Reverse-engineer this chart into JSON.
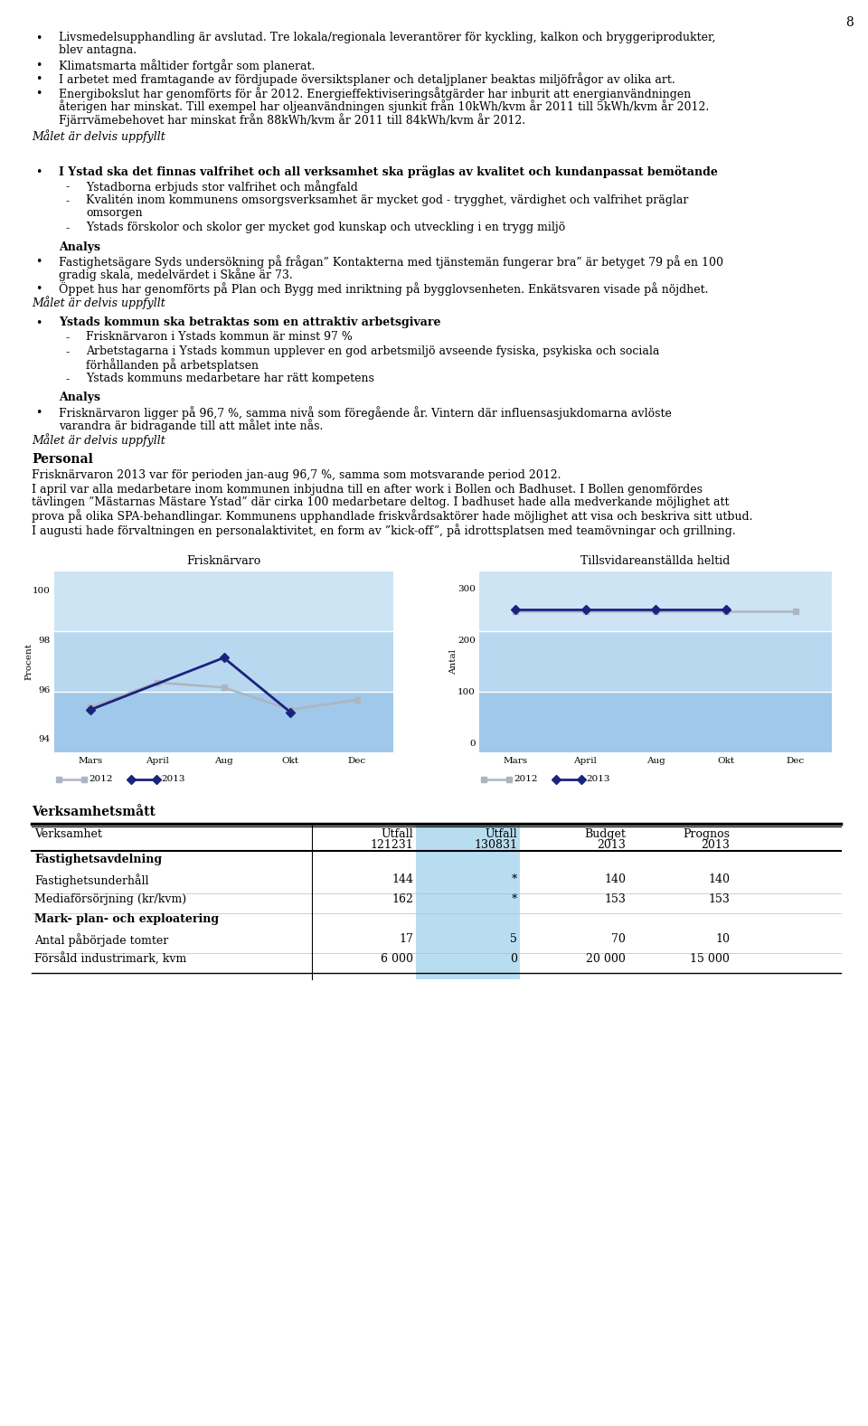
{
  "page_number": "8",
  "background_color": "#ffffff",
  "bullet_points_1": [
    [
      "Livsmedelsupphandling är avslutad. Tre lokala/regionala leverantörer för kyckling, kalkon och bryggeriprodukter,",
      "blev antagna."
    ],
    [
      "Klimatsmarta måltider fortgår som planerat."
    ],
    [
      "I arbetet med framtagande av fördjupade översiktsplaner och detaljplaner beaktas miljöfrågor av olika art."
    ],
    [
      "Energibokslut har genomförts för år 2012. Energieffektiviseringsåtgärder har inburit att energianvändningen",
      "återigen har minskat. Till exempel har oljeanvändningen sjunkit från 10kWh/kvm år 2011 till 5kWh/kvm år 2012.",
      "Fjärrvämebehovet har minskat från 88kWh/kvm år 2011 till 84kWh/kvm år 2012."
    ]
  ],
  "italic_1": "Målet är delvis uppfyllt",
  "bullet_bold_1": "I Ystad ska det finnas valfrihet och all verksamhet ska präglas av kvalitet och kundanpassat bemötande",
  "sub_bullets_1": [
    [
      "Ystadborna erbjuds stor valfrihet och mångfald"
    ],
    [
      "Kvalitén inom kommunens omsorgsverksamhet är mycket god - trygghet, värdighet och valfrihet präglar",
      "omsorgen"
    ],
    [
      "Ystads förskolor och skolor ger mycket god kunskap och utveckling i en trygg miljö"
    ]
  ],
  "analys_1_title": "Analys",
  "analys_1_lines": [
    [
      "Fastighetsägare Syds undersökning på frågan” Kontakterna med tjänstemän fungerar bra” är betyget 79 på en 100",
      "gradig skala, medelvärdet i Skåne är 73."
    ],
    [
      "Öppet hus har genomförts på Plan och Bygg med inriktning på bygglovsenheten. Enkätsvaren visade på nöjdhet."
    ]
  ],
  "italic_2": "Målet är delvis uppfyllt",
  "bullet_bold_2": "Ystads kommun ska betraktas som en attraktiv arbetsgivare",
  "sub_bullets_2": [
    [
      "Frisknärvaron i Ystads kommun är minst 97 %"
    ],
    [
      "Arbetstagarna i Ystads kommun upplever en god arbetsmiljö avseende fysiska, psykiska och sociala",
      "förhållanden på arbetsplatsen"
    ],
    [
      "Ystads kommuns medarbetare har rätt kompetens"
    ]
  ],
  "analys_2_title": "Analys",
  "analys_2_lines": [
    [
      "Frisknärvaron ligger på 96,7 %, samma nivå som föregående år. Vintern där influensasjukdomarna avlöste",
      "varandra är bidragande till att målet inte nås."
    ]
  ],
  "italic_3": "Målet är delvis uppfyllt",
  "personal_title": "Personal",
  "personal_lines": [
    [
      "Frisknärvaron 2013 var för perioden jan-aug 96,7 %, samma som motsvarande period 2012."
    ],
    [
      "I april var alla medarbetare inom kommunen inbjudna till en after work i Bollen och Badhuset. I Bollen genomfördes",
      "tävlingen ”Mästarnas Mästare Ystad” där cirka 100 medarbetare deltog. I badhuset hade alla medverkande möjlighet att",
      "prova på olika SPA-behandlingar. Kommunens upphandlade friskvårdsaktörer hade möjlighet att visa och beskriva sitt utbud."
    ],
    [
      "I augusti hade förvaltningen en personalaktivitet, en form av ”kick-off”, på idrottsplatsen med teamövningar och grillning."
    ]
  ],
  "chart1_title": "Frisknärvaro",
  "chart1_ylabel": "Procent",
  "chart1_xticks": [
    "Mars",
    "April",
    "Aug",
    "Okt",
    "Dec"
  ],
  "chart1_yticks": [
    94,
    96,
    98,
    100
  ],
  "chart1_ylim": [
    93.5,
    100.8
  ],
  "chart1_2012_values": [
    95.3,
    96.3,
    96.1,
    95.2,
    95.6
  ],
  "chart1_2013_values": [
    95.2,
    null,
    97.3,
    95.1,
    null
  ],
  "chart2_title": "Tillsvidareanställda heltid",
  "chart2_ylabel": "Antal",
  "chart2_xticks": [
    "Mars",
    "April",
    "Aug",
    "Okt",
    "Dec"
  ],
  "chart2_yticks": [
    0,
    100,
    200,
    300
  ],
  "chart2_ylim": [
    -15,
    335
  ],
  "chart2_2012_values": [
    258,
    258,
    258,
    258,
    258
  ],
  "chart2_2013_values": [
    261,
    261,
    261,
    261,
    null
  ],
  "color_2012": "#adb5c0",
  "color_2013": "#1a237e",
  "table_title": "Verksamhetsmått",
  "table_headers": [
    "Verksamhet",
    "Utfall\n121231",
    "Utfall\n130831",
    "Budget\n2013",
    "Prognos\n2013"
  ],
  "table_sections": [
    {
      "section_title": "Fastighetsavdelning",
      "rows": [
        [
          "Fastighetsunderhåll",
          "144",
          "*",
          "140",
          "140"
        ],
        [
          "Mediaförsörjning (kr/kvm)",
          "162",
          "*",
          "153",
          "153"
        ]
      ]
    },
    {
      "section_title": "Mark- plan- och exploatering",
      "rows": [
        [
          "Antal påbörjade tomter",
          "17",
          "5",
          "70",
          "10"
        ],
        [
          "Försåld industrimark, kvm",
          "6 000",
          "0",
          "20 000",
          "15 000"
        ]
      ]
    }
  ],
  "table_highlight_col": 2
}
